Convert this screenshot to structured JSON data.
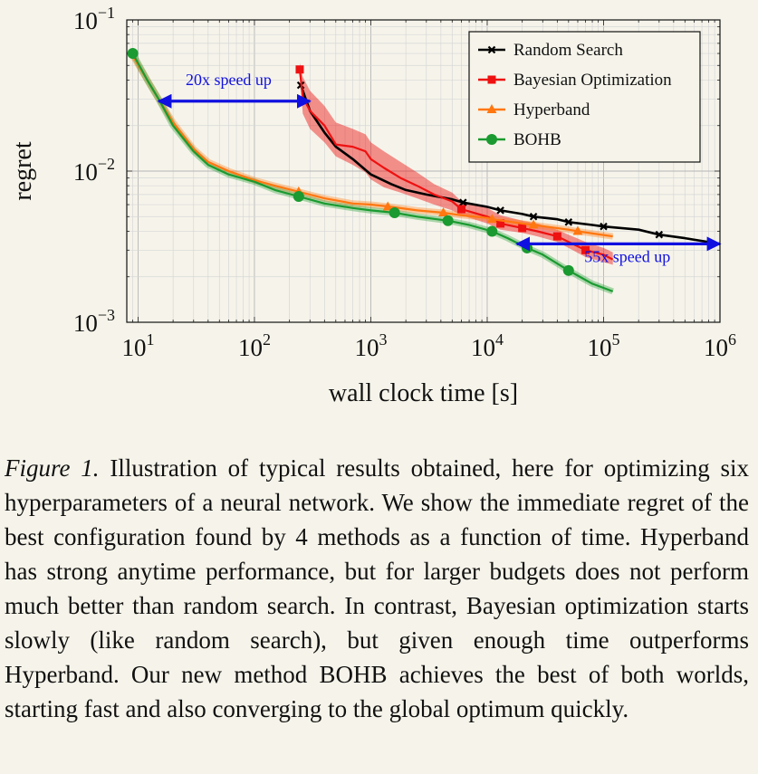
{
  "chart_data": {
    "type": "line",
    "title": "",
    "xlabel": "wall clock time",
    "xlabel_unit": "[s]",
    "ylabel": "regret",
    "x_scale": "log",
    "y_scale": "log",
    "xlim": [
      8,
      1000000
    ],
    "ylim": [
      0.001,
      0.1
    ],
    "grid": true,
    "legend_position": "top-right",
    "x_ticks": [
      {
        "value": 10,
        "base": "10",
        "exp": "1"
      },
      {
        "value": 100,
        "base": "10",
        "exp": "2"
      },
      {
        "value": 1000,
        "base": "10",
        "exp": "3"
      },
      {
        "value": 10000,
        "base": "10",
        "exp": "4"
      },
      {
        "value": 100000,
        "base": "10",
        "exp": "5"
      },
      {
        "value": 1000000,
        "base": "10",
        "exp": "6"
      }
    ],
    "y_ticks": [
      {
        "value": 0.1,
        "base": "10",
        "exp": "−1"
      },
      {
        "value": 0.01,
        "base": "10",
        "exp": "−2"
      },
      {
        "value": 0.001,
        "base": "10",
        "exp": "−3"
      }
    ],
    "series": [
      {
        "name": "Random Search",
        "color": "#000000",
        "marker": "cross",
        "x": [
          250,
          300,
          400,
          500,
          700,
          1000,
          1500,
          2000,
          3000,
          5000,
          6200,
          10000,
          13000,
          20000,
          25000,
          40000,
          50000,
          80000,
          100000,
          200000,
          300000,
          500000,
          1000000
        ],
        "y": [
          0.037,
          0.025,
          0.018,
          0.0145,
          0.012,
          0.0095,
          0.0082,
          0.0075,
          0.007,
          0.0065,
          0.0062,
          0.0058,
          0.0055,
          0.0052,
          0.005,
          0.0048,
          0.0046,
          0.0044,
          0.0043,
          0.0041,
          0.0038,
          0.0036,
          0.0033
        ],
        "marker_x": [
          250,
          6200,
          13000,
          25000,
          50000,
          100000,
          300000
        ],
        "marker_y": [
          0.037,
          0.0062,
          0.0055,
          0.005,
          0.0046,
          0.0043,
          0.0038
        ]
      },
      {
        "name": "Bayesian Optimization",
        "color": "#ee1111",
        "marker": "square",
        "x": [
          245,
          260,
          300,
          400,
          500,
          700,
          900,
          1000,
          1300,
          1800,
          2500,
          3500,
          5000,
          6000,
          10000,
          13000,
          20000,
          27000,
          40000,
          50000,
          70000,
          100000,
          120000
        ],
        "y": [
          0.047,
          0.031,
          0.025,
          0.02,
          0.015,
          0.0145,
          0.0135,
          0.012,
          0.0105,
          0.009,
          0.008,
          0.007,
          0.0063,
          0.0056,
          0.005,
          0.0045,
          0.0042,
          0.004,
          0.0037,
          0.0034,
          0.003,
          0.0028,
          0.0026
        ],
        "marker_x": [
          245,
          6000,
          13000,
          20000,
          40000,
          70000
        ],
        "marker_y": [
          0.047,
          0.0056,
          0.0045,
          0.0042,
          0.0037,
          0.003
        ],
        "band_upper": [
          0.052,
          0.042,
          0.034,
          0.027,
          0.021,
          0.019,
          0.0175,
          0.0155,
          0.0135,
          0.0115,
          0.0098,
          0.0082,
          0.0072,
          0.0063,
          0.0057,
          0.0051,
          0.0047,
          0.0045,
          0.0041,
          0.0038,
          0.0034,
          0.0031,
          0.0029
        ],
        "band_lower": [
          0.043,
          0.024,
          0.019,
          0.0155,
          0.0125,
          0.011,
          0.0098,
          0.0088,
          0.0078,
          0.0072,
          0.0066,
          0.006,
          0.0055,
          0.0051,
          0.0045,
          0.0041,
          0.0039,
          0.0037,
          0.0034,
          0.0031,
          0.0027,
          0.0025,
          0.0024
        ]
      },
      {
        "name": "Hyperband",
        "color": "#ff7710",
        "marker": "triangle",
        "x": [
          9,
          15,
          20,
          30,
          40,
          60,
          100,
          150,
          240,
          400,
          700,
          1000,
          1500,
          2500,
          4200,
          6000,
          10000,
          11000,
          20000,
          25000,
          50000,
          60000,
          120000
        ],
        "y": [
          0.058,
          0.03,
          0.021,
          0.014,
          0.0115,
          0.01,
          0.0087,
          0.008,
          0.0073,
          0.0066,
          0.0061,
          0.006,
          0.0058,
          0.0055,
          0.0053,
          0.0051,
          0.0049,
          0.0048,
          0.0045,
          0.0044,
          0.0041,
          0.004,
          0.0037
        ],
        "marker_x": [
          240,
          1400,
          4200,
          11000,
          25000,
          60000
        ],
        "marker_y": [
          0.0073,
          0.0058,
          0.0053,
          0.0048,
          0.0044,
          0.004
        ]
      },
      {
        "name": "BOHB",
        "color": "#1a9a30",
        "marker": "circle",
        "x": [
          9,
          12,
          15,
          20,
          30,
          40,
          60,
          100,
          150,
          240,
          400,
          700,
          1000,
          1600,
          2500,
          4600,
          7000,
          11000,
          15000,
          22000,
          30000,
          50000,
          80000,
          120000
        ],
        "y": [
          0.06,
          0.04,
          0.03,
          0.02,
          0.0135,
          0.011,
          0.0095,
          0.0085,
          0.0075,
          0.0068,
          0.0061,
          0.0057,
          0.0055,
          0.0053,
          0.005,
          0.0047,
          0.0044,
          0.004,
          0.0036,
          0.0031,
          0.0028,
          0.0022,
          0.0018,
          0.0016
        ],
        "marker_x": [
          9,
          240,
          1600,
          4600,
          11000,
          22000,
          50000
        ],
        "marker_y": [
          0.06,
          0.0068,
          0.0053,
          0.0047,
          0.004,
          0.0031,
          0.0022
        ]
      }
    ],
    "annotations": [
      {
        "text": "20x speed up",
        "x_from": 15,
        "x_to": 300,
        "y": 0.029,
        "label_x": 60,
        "label_y": 0.037,
        "color": "#1010e0"
      },
      {
        "text": "55x speed up",
        "x_from": 18000,
        "x_to": 1000000,
        "y": 0.0033,
        "label_x": 160000,
        "label_y": 0.0025,
        "color": "#1010e0"
      }
    ]
  },
  "caption": {
    "label": "Figure 1.",
    "text": "Illustration of typical results obtained, here for optimizing six hyperparameters of a neural network. We show the immediate regret of the best configuration found by 4 methods as a function of time. Hyperband has strong anytime performance, but for larger budgets does not perform much better than random search. In contrast, Bayesian optimization starts slowly (like random search), but given enough time outperforms Hyperband. Our new method BOHB achieves the best of both worlds, starting fast and also converging to the global optimum quickly."
  }
}
